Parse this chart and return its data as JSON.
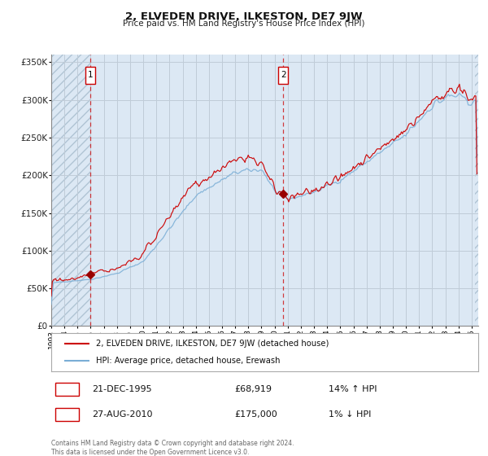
{
  "title": "2, ELVEDEN DRIVE, ILKESTON, DE7 9JW",
  "subtitle": "Price paid vs. HM Land Registry's House Price Index (HPI)",
  "legend_line1": "2, ELVEDEN DRIVE, ILKESTON, DE7 9JW (detached house)",
  "legend_line2": "HPI: Average price, detached house, Erewash",
  "annotation1_date": "21-DEC-1995",
  "annotation1_price": "£68,919",
  "annotation1_hpi": "14% ↑ HPI",
  "annotation1_value": 68919,
  "annotation1_year": 1995.97,
  "annotation2_date": "27-AUG-2010",
  "annotation2_price": "£175,000",
  "annotation2_hpi": "1% ↓ HPI",
  "annotation2_value": 175000,
  "annotation2_year": 2010.65,
  "copyright_text": "Contains HM Land Registry data © Crown copyright and database right 2024.\nThis data is licensed under the Open Government Licence v3.0.",
  "plot_bg": "#dce8f4",
  "grid_color": "#c0ccd8",
  "red_line_color": "#cc0000",
  "blue_line_color": "#7aaed6",
  "dashed_line_color": "#cc0000",
  "marker_color": "#990000",
  "box_edge_color": "#cc0000",
  "ylim_min": 0,
  "ylim_max": 360000,
  "xmin": 1993.0,
  "xmax": 2025.5,
  "yticks": [
    0,
    50000,
    100000,
    150000,
    200000,
    250000,
    300000,
    350000
  ]
}
